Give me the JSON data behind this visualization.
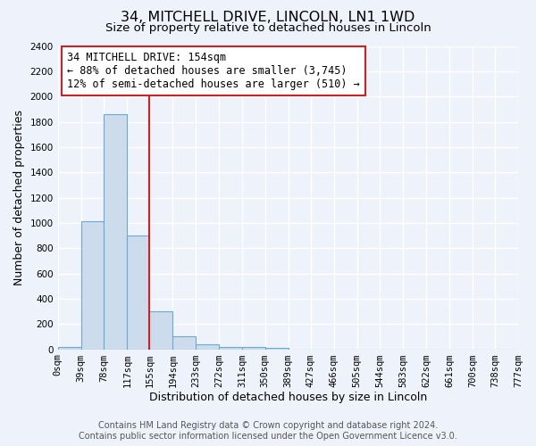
{
  "title": "34, MITCHELL DRIVE, LINCOLN, LN1 1WD",
  "subtitle": "Size of property relative to detached houses in Lincoln",
  "xlabel": "Distribution of detached houses by size in Lincoln",
  "ylabel": "Number of detached properties",
  "bar_color": "#ccdcec",
  "bar_edge_color": "#6aaad4",
  "background_color": "#eef2fa",
  "grid_color": "#ffffff",
  "bin_edges": [
    0,
    39,
    78,
    117,
    155,
    194,
    233,
    272,
    311,
    350,
    389,
    427,
    466,
    505,
    544,
    583,
    622,
    661,
    700,
    738,
    777
  ],
  "bin_labels": [
    "0sqm",
    "39sqm",
    "78sqm",
    "117sqm",
    "155sqm",
    "194sqm",
    "233sqm",
    "272sqm",
    "311sqm",
    "350sqm",
    "389sqm",
    "427sqm",
    "466sqm",
    "505sqm",
    "544sqm",
    "583sqm",
    "622sqm",
    "661sqm",
    "700sqm",
    "738sqm",
    "777sqm"
  ],
  "bar_heights": [
    20,
    1010,
    1860,
    900,
    300,
    100,
    40,
    20,
    15,
    10,
    0,
    0,
    0,
    0,
    0,
    0,
    0,
    0,
    0,
    0
  ],
  "ylim": [
    0,
    2400
  ],
  "yticks": [
    0,
    200,
    400,
    600,
    800,
    1000,
    1200,
    1400,
    1600,
    1800,
    2000,
    2200,
    2400
  ],
  "red_line_x": 154,
  "annotation_title": "34 MITCHELL DRIVE: 154sqm",
  "annotation_line1": "← 88% of detached houses are smaller (3,745)",
  "annotation_line2": "12% of semi-detached houses are larger (510) →",
  "footer_line1": "Contains HM Land Registry data © Crown copyright and database right 2024.",
  "footer_line2": "Contains public sector information licensed under the Open Government Licence v3.0.",
  "title_fontsize": 11.5,
  "subtitle_fontsize": 9.5,
  "axis_label_fontsize": 9,
  "tick_fontsize": 7.5,
  "annotation_fontsize": 8.5,
  "footer_fontsize": 7
}
